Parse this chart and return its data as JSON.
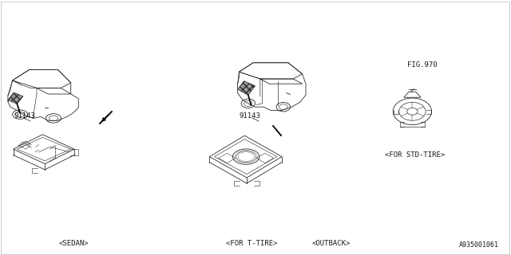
{
  "bg_color": "#ffffff",
  "line_color": "#1a1a1a",
  "part_number": "91143",
  "fig_ref": "FIG.970",
  "label_sedan": "<SEDAN>",
  "label_t_tire": "<FOR T-TIRE>",
  "label_outback": "<OUTBACK>",
  "label_std_tire": "<FOR STD-TIRE>",
  "watermark": "A935001061",
  "lw": 0.55
}
